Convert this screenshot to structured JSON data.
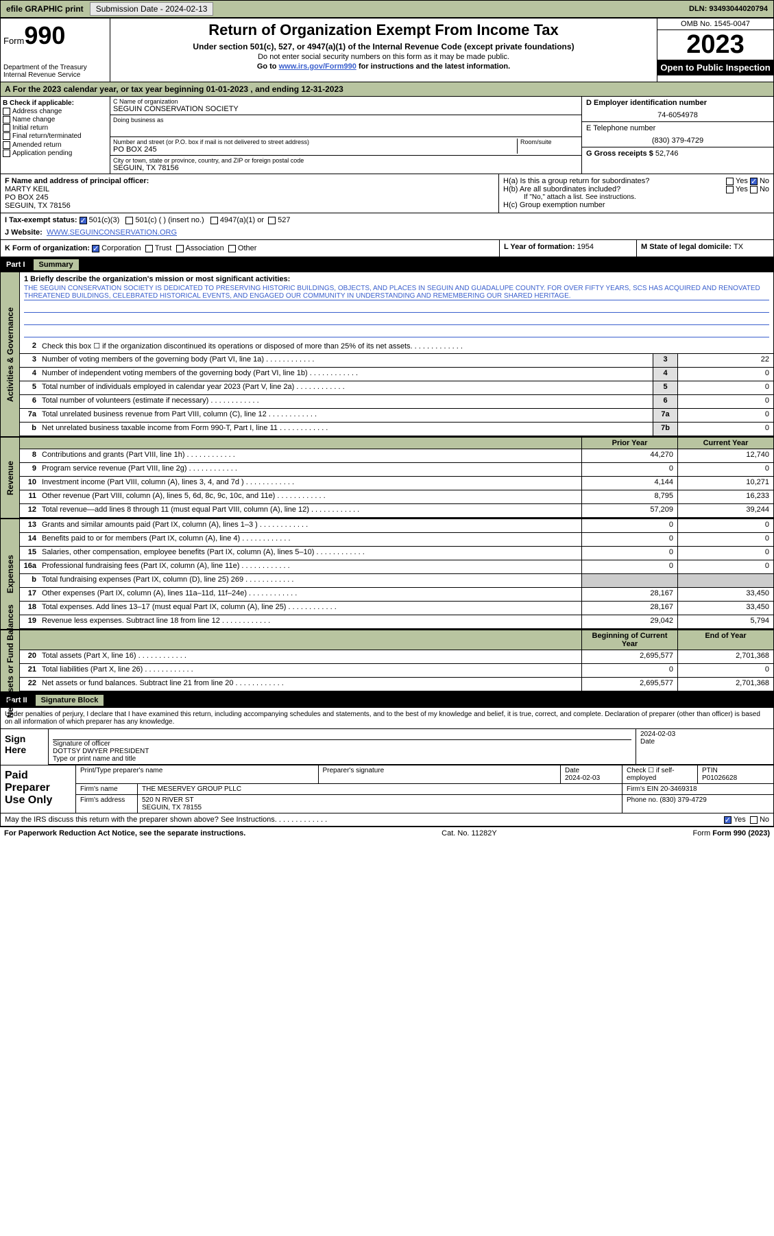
{
  "topbar": {
    "efile": "efile GRAPHIC print",
    "subdate_lbl": "Submission Date - ",
    "subdate": "2024-02-13",
    "dln_lbl": "DLN: ",
    "dln": "93493044020794"
  },
  "header": {
    "form_prefix": "Form",
    "form_num": "990",
    "dept": "Department of the Treasury\nInternal Revenue Service",
    "title": "Return of Organization Exempt From Income Tax",
    "sub1": "Under section 501(c), 527, or 4947(a)(1) of the Internal Revenue Code (except private foundations)",
    "sub2": "Do not enter social security numbers on this form as it may be made public.",
    "sub3_pre": "Go to ",
    "sub3_link": "www.irs.gov/Form990",
    "sub3_post": " for instructions and the latest information.",
    "omb": "OMB No. 1545-0047",
    "year": "2023",
    "open": "Open to Public Inspection"
  },
  "period": {
    "a_pre": "A   For the 2023 calendar year, or tax year beginning ",
    "begin": "01-01-2023",
    "mid": "   , and ending ",
    "end": "12-31-2023"
  },
  "boxB": {
    "label": "B Check if applicable:",
    "items": [
      "Address change",
      "Name change",
      "Initial return",
      "Final return/terminated",
      "Amended return",
      "Application pending"
    ]
  },
  "boxC": {
    "name_lbl": "C Name of organization",
    "name": "SEGUIN CONSERVATION SOCIETY",
    "dba_lbl": "Doing business as",
    "dba": "",
    "addr_lbl": "Number and street (or P.O. box if mail is not delivered to street address)",
    "room_lbl": "Room/suite",
    "addr": "PO BOX 245",
    "city_lbl": "City or town, state or province, country, and ZIP or foreign postal code",
    "city": "SEGUIN, TX  78156"
  },
  "boxD": {
    "lbl": "D Employer identification number",
    "val": "74-6054978"
  },
  "boxE": {
    "lbl": "E Telephone number",
    "val": "(830) 379-4729"
  },
  "boxG": {
    "lbl": "G Gross receipts $ ",
    "val": "52,746"
  },
  "boxF": {
    "lbl": "F Name and address of principal officer:",
    "name": "MARTY KEIL",
    "addr1": "PO BOX 245",
    "addr2": "SEGUIN, TX  78156"
  },
  "boxH": {
    "a": "H(a)  Is this a group return for subordinates?",
    "b": "H(b)  Are all subordinates included?",
    "b_note": "If \"No,\" attach a list. See instructions.",
    "c": "H(c)  Group exemption number",
    "yes": "Yes",
    "no": "No"
  },
  "boxI": {
    "lbl": "I    Tax-exempt status:",
    "o1": "501(c)(3)",
    "o2": "501(c) (  ) (insert no.)",
    "o3": "4947(a)(1) or",
    "o4": "527"
  },
  "boxJ": {
    "lbl": "J    Website:",
    "val": "WWW.SEGUINCONSERVATION.ORG"
  },
  "boxK": {
    "lbl": "K Form of organization:",
    "o1": "Corporation",
    "o2": "Trust",
    "o3": "Association",
    "o4": "Other"
  },
  "boxL": {
    "lbl": "L Year of formation: ",
    "val": "1954"
  },
  "boxM": {
    "lbl": "M State of legal domicile: ",
    "val": "TX"
  },
  "part1": {
    "num": "Part I",
    "title": "Summary"
  },
  "mission": {
    "q": "1   Briefly describe the organization's mission or most significant activities:",
    "text": "THE SEGUIN CONSERVATION SOCIETY IS DEDICATED TO PRESERVING HISTORIC BUILDINGS, OBJECTS, AND PLACES IN SEGUIN AND GUADALUPE COUNTY. FOR OVER FIFTY YEARS, SCS HAS ACQUIRED AND RENOVATED THREATENED BUILDINGS, CELEBRATED HISTORICAL EVENTS, AND ENGAGED OUR COMMUNITY IN UNDERSTANDING AND REMEMBERING OUR SHARED HERITAGE."
  },
  "gov_rows": [
    {
      "n": "2",
      "t": "Check this box ☐ if the organization discontinued its operations or disposed of more than 25% of its net assets.",
      "box": "",
      "v": ""
    },
    {
      "n": "3",
      "t": "Number of voting members of the governing body (Part VI, line 1a)",
      "box": "3",
      "v": "22"
    },
    {
      "n": "4",
      "t": "Number of independent voting members of the governing body (Part VI, line 1b)",
      "box": "4",
      "v": "0"
    },
    {
      "n": "5",
      "t": "Total number of individuals employed in calendar year 2023 (Part V, line 2a)",
      "box": "5",
      "v": "0"
    },
    {
      "n": "6",
      "t": "Total number of volunteers (estimate if necessary)",
      "box": "6",
      "v": "0"
    },
    {
      "n": "7a",
      "t": "Total unrelated business revenue from Part VIII, column (C), line 12",
      "box": "7a",
      "v": "0"
    },
    {
      "n": "b",
      "t": "Net unrelated business taxable income from Form 990-T, Part I, line 11",
      "box": "7b",
      "v": "0"
    }
  ],
  "col_hdr": {
    "py": "Prior Year",
    "cy": "Current Year"
  },
  "rev_rows": [
    {
      "n": "8",
      "t": "Contributions and grants (Part VIII, line 1h)",
      "py": "44,270",
      "cy": "12,740"
    },
    {
      "n": "9",
      "t": "Program service revenue (Part VIII, line 2g)",
      "py": "0",
      "cy": "0"
    },
    {
      "n": "10",
      "t": "Investment income (Part VIII, column (A), lines 3, 4, and 7d )",
      "py": "4,144",
      "cy": "10,271"
    },
    {
      "n": "11",
      "t": "Other revenue (Part VIII, column (A), lines 5, 6d, 8c, 9c, 10c, and 11e)",
      "py": "8,795",
      "cy": "16,233"
    },
    {
      "n": "12",
      "t": "Total revenue—add lines 8 through 11 (must equal Part VIII, column (A), line 12)",
      "py": "57,209",
      "cy": "39,244"
    }
  ],
  "exp_rows": [
    {
      "n": "13",
      "t": "Grants and similar amounts paid (Part IX, column (A), lines 1–3 )",
      "py": "0",
      "cy": "0"
    },
    {
      "n": "14",
      "t": "Benefits paid to or for members (Part IX, column (A), line 4)",
      "py": "0",
      "cy": "0"
    },
    {
      "n": "15",
      "t": "Salaries, other compensation, employee benefits (Part IX, column (A), lines 5–10)",
      "py": "0",
      "cy": "0"
    },
    {
      "n": "16a",
      "t": "Professional fundraising fees (Part IX, column (A), line 11e)",
      "py": "0",
      "cy": "0"
    },
    {
      "n": "b",
      "t": "Total fundraising expenses (Part IX, column (D), line 25) 269",
      "py": "",
      "cy": ""
    },
    {
      "n": "17",
      "t": "Other expenses (Part IX, column (A), lines 11a–11d, 11f–24e)",
      "py": "28,167",
      "cy": "33,450"
    },
    {
      "n": "18",
      "t": "Total expenses. Add lines 13–17 (must equal Part IX, column (A), line 25)",
      "py": "28,167",
      "cy": "33,450"
    },
    {
      "n": "19",
      "t": "Revenue less expenses. Subtract line 18 from line 12",
      "py": "29,042",
      "cy": "5,794"
    }
  ],
  "na_hdr": {
    "py": "Beginning of Current Year",
    "cy": "End of Year"
  },
  "na_rows": [
    {
      "n": "20",
      "t": "Total assets (Part X, line 16)",
      "py": "2,695,577",
      "cy": "2,701,368"
    },
    {
      "n": "21",
      "t": "Total liabilities (Part X, line 26)",
      "py": "0",
      "cy": "0"
    },
    {
      "n": "22",
      "t": "Net assets or fund balances. Subtract line 21 from line 20",
      "py": "2,695,577",
      "cy": "2,701,368"
    }
  ],
  "labels": {
    "gov": "Activities & Governance",
    "rev": "Revenue",
    "exp": "Expenses",
    "na": "Net Assets or Fund Balances"
  },
  "part2": {
    "num": "Part II",
    "title": "Signature Block"
  },
  "perjury": "Under penalties of perjury, I declare that I have examined this return, including accompanying schedules and statements, and to the best of my knowledge and belief, it is true, correct, and complete. Declaration of preparer (other than officer) is based on all information of which preparer has any knowledge.",
  "sign": {
    "here": "Sign Here",
    "sig_lbl": "Signature of officer",
    "name": "DOTTSY DWYER  PRESIDENT",
    "type_lbl": "Type or print name and title",
    "date_lbl": "Date",
    "date": "2024-02-03"
  },
  "prep": {
    "lbl": "Paid Preparer Use Only",
    "name_lbl": "Print/Type preparer's name",
    "sig_lbl": "Preparer's signature",
    "date_lbl": "Date",
    "date": "2024-02-03",
    "check_lbl": "Check ☐ if self-employed",
    "ptin_lbl": "PTIN",
    "ptin": "P01026628",
    "firm_lbl": "Firm's name",
    "firm": "THE MESERVEY GROUP PLLC",
    "ein_lbl": "Firm's EIN",
    "ein": "20-3469318",
    "addr_lbl": "Firm's address",
    "addr1": "520 N RIVER ST",
    "addr2": "SEGUIN, TX  78155",
    "phone_lbl": "Phone no.",
    "phone": "(830) 379-4729"
  },
  "discuss": {
    "q": "May the IRS discuss this return with the preparer shown above? See Instructions.",
    "yes": "Yes",
    "no": "No"
  },
  "footer": {
    "l": "For Paperwork Reduction Act Notice, see the separate instructions.",
    "c": "Cat. No. 11282Y",
    "r": "Form 990 (2023)"
  }
}
